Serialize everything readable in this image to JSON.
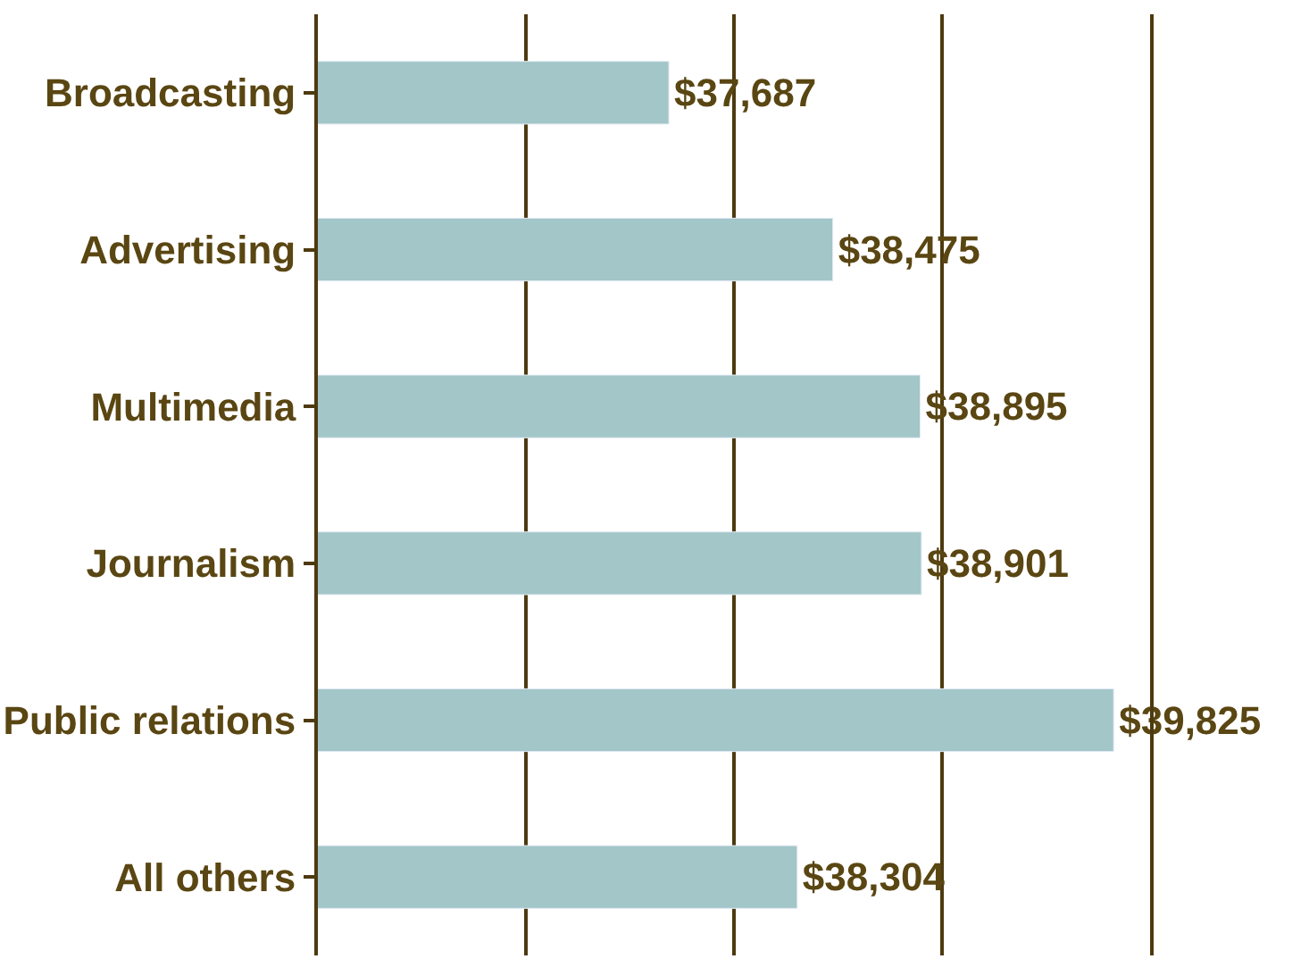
{
  "chart_data": {
    "type": "bar",
    "orientation": "horizontal",
    "categories": [
      "Broadcasting",
      "Advertising",
      "Multimedia",
      "Journalism",
      "Public relations",
      "All others"
    ],
    "values": [
      37687,
      38475,
      38895,
      38901,
      39825,
      38304
    ],
    "value_labels": [
      "$37,687",
      "$38,475",
      "$38,895",
      "$38,901",
      "$39,825",
      "$38,304"
    ],
    "color": "#a3c6c8",
    "xlim": [
      36000,
      40000
    ],
    "xticks": [
      {
        "value": 37000,
        "label": null
      },
      {
        "value": 38000,
        "label": null
      },
      {
        "value": 39000,
        "label": null
      },
      {
        "value": 40000,
        "label": null
      }
    ],
    "grid": "x",
    "tick_labels": "y",
    "legend": false
  }
}
